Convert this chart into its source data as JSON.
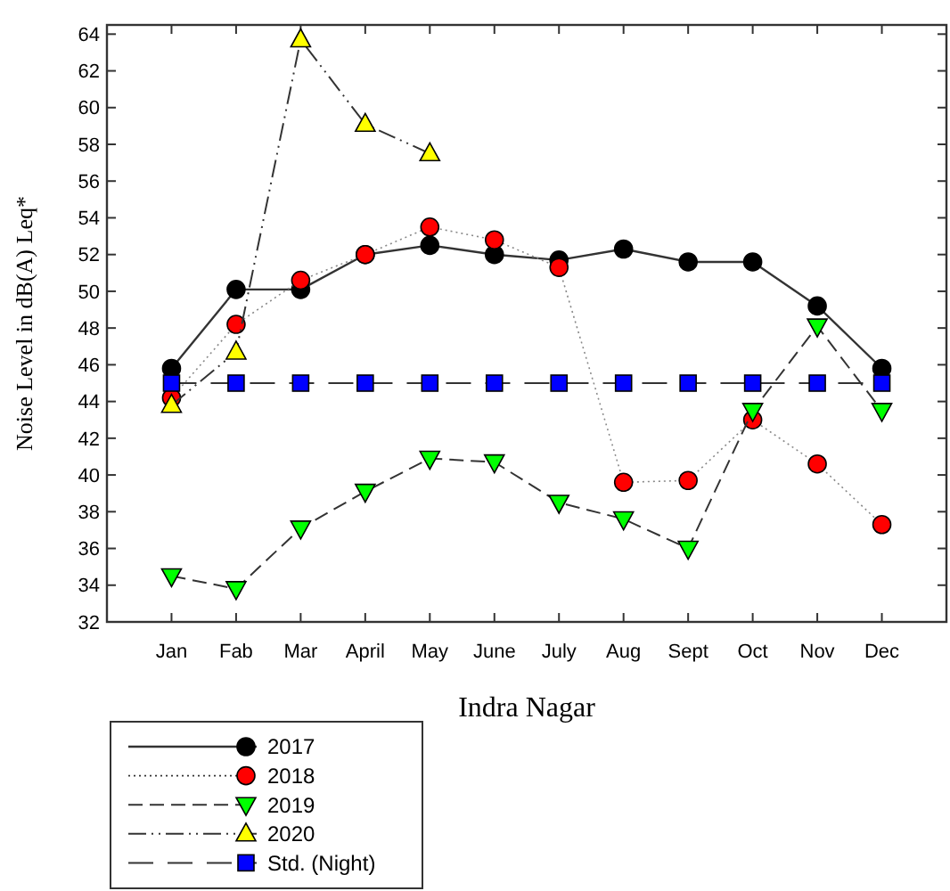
{
  "chart_data": {
    "type": "line",
    "xlabel": "Indra Nagar",
    "ylabel": "Noise Level in dB(A) Leq*",
    "categories": [
      "Jan",
      "Fab",
      "Mar",
      "April",
      "May",
      "June",
      "July",
      "Aug",
      "Sept",
      "Oct",
      "Nov",
      "Dec"
    ],
    "ylim": [
      32,
      64.5
    ],
    "yticks": [
      32,
      34,
      36,
      38,
      40,
      42,
      44,
      46,
      48,
      50,
      52,
      54,
      56,
      58,
      60,
      62,
      64
    ],
    "grid": false,
    "legend": "bottom left",
    "series": [
      {
        "name": "2017",
        "color": "#000000",
        "marker": "circle",
        "line_style": "solid",
        "values": [
          45.8,
          50.1,
          50.1,
          52.0,
          52.5,
          52.0,
          51.7,
          52.3,
          51.6,
          51.6,
          49.2,
          45.8
        ]
      },
      {
        "name": "2018",
        "color": "#ff0000",
        "marker": "circle",
        "line_style": "dotted",
        "values": [
          44.2,
          48.2,
          50.6,
          52.0,
          53.5,
          52.8,
          51.3,
          39.6,
          39.7,
          43.0,
          40.6,
          37.3
        ]
      },
      {
        "name": "2019",
        "color": "#00ff00",
        "marker": "triangle-down",
        "line_style": "dashed",
        "values": [
          34.5,
          33.8,
          37.1,
          39.1,
          40.9,
          40.7,
          38.5,
          37.6,
          36.0,
          43.5,
          48.1,
          43.5
        ]
      },
      {
        "name": "2020",
        "color": "#ffff00",
        "marker": "triangle",
        "line_style": "dashdot",
        "values": [
          43.8,
          46.7,
          63.7,
          59.1,
          57.5,
          null,
          null,
          null,
          null,
          null,
          null,
          null
        ]
      },
      {
        "name": "Std. (Night)",
        "color": "#0000ff",
        "marker": "square",
        "line_style": "longdash",
        "values": [
          45,
          45,
          45,
          45,
          45,
          45,
          45,
          45,
          45,
          45,
          45,
          45
        ]
      }
    ]
  }
}
